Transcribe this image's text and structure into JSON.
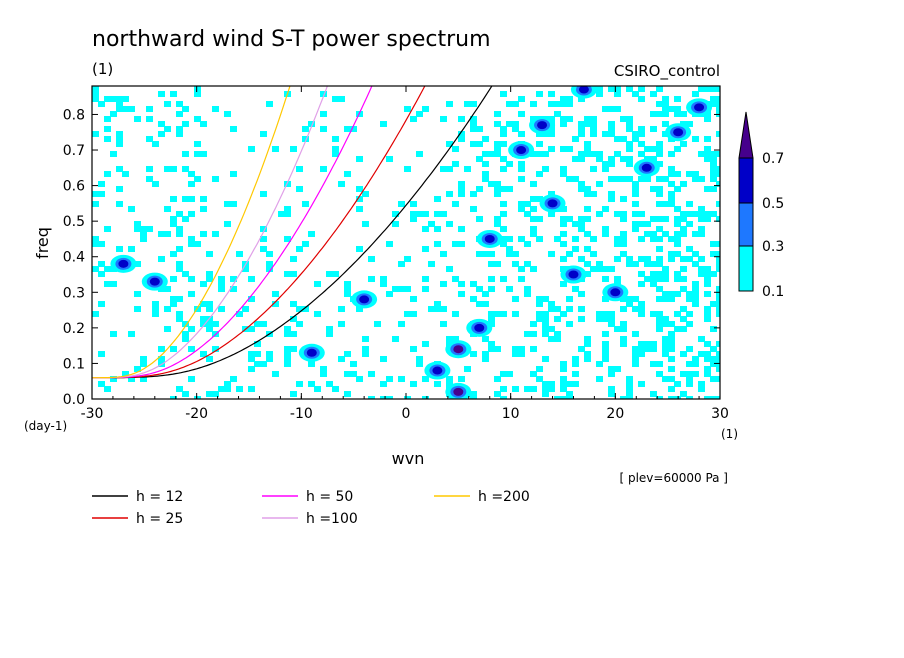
{
  "chart_data": {
    "type": "heatmap",
    "title": "northward wind S-T power spectrum",
    "subtitle_left": "(1)",
    "subtitle_right": "CSIRO_control",
    "xlabel": "wvn",
    "ylabel": "freq",
    "x_unit": "(1)",
    "y_unit": "(day-1)",
    "xlim": [
      -30,
      30
    ],
    "ylim": [
      0,
      0.88
    ],
    "x_ticks": [
      -30,
      -20,
      -10,
      0,
      10,
      20,
      30
    ],
    "y_ticks": [
      0.0,
      0.1,
      0.2,
      0.3,
      0.4,
      0.5,
      0.6,
      0.7,
      0.8
    ],
    "x_tick_labels": [
      "-30",
      "-20",
      "-10",
      "0",
      "10",
      "20",
      "30"
    ],
    "y_tick_labels": [
      "0.0",
      "0.1",
      "0.2",
      "0.3",
      "0.4",
      "0.5",
      "0.6",
      "0.7",
      "0.8"
    ],
    "annotation": "[ plev=60000 Pa ]",
    "colorbar": {
      "levels": [
        "0.1",
        "0.3",
        "0.5",
        "0.7"
      ],
      "colors": [
        "#00ffff",
        "#1e78ff",
        "#0000c8",
        "#46008c"
      ]
    },
    "curves": [
      {
        "label": "h = 12",
        "h": 12,
        "color": "#000000"
      },
      {
        "label": "h = 25",
        "h": 25,
        "color": "#e00000"
      },
      {
        "label": "h = 50",
        "h": 50,
        "color": "#ff00ff"
      },
      {
        "label": "h =100",
        "h": 100,
        "color": "#e0a0e8"
      },
      {
        "label": "h =200",
        "h": 200,
        "color": "#ffc800"
      }
    ],
    "hotspots": [
      {
        "x": 5,
        "y": 0.14,
        "level": 0.7
      },
      {
        "x": 7,
        "y": 0.2,
        "level": 0.5
      },
      {
        "x": 3,
        "y": 0.08,
        "level": 0.5
      },
      {
        "x": 5,
        "y": 0.02,
        "level": 0.7
      },
      {
        "x": 8,
        "y": 0.45,
        "level": 0.5
      },
      {
        "x": 11,
        "y": 0.7,
        "level": 0.5
      },
      {
        "x": 13,
        "y": 0.77,
        "level": 0.5
      },
      {
        "x": 14,
        "y": 0.55,
        "level": 0.5
      },
      {
        "x": 16,
        "y": 0.35,
        "level": 0.5
      },
      {
        "x": 20,
        "y": 0.3,
        "level": 0.5
      },
      {
        "x": 23,
        "y": 0.65,
        "level": 0.5
      },
      {
        "x": 26,
        "y": 0.75,
        "level": 0.5
      },
      {
        "x": 28,
        "y": 0.82,
        "level": 0.5
      },
      {
        "x": -9,
        "y": 0.13,
        "level": 0.5
      },
      {
        "x": -27,
        "y": 0.38,
        "level": 0.5
      },
      {
        "x": -24,
        "y": 0.33,
        "level": 0.5
      },
      {
        "x": -4,
        "y": 0.28,
        "level": 0.3
      },
      {
        "x": 17,
        "y": 0.87,
        "level": 0.5
      }
    ]
  }
}
